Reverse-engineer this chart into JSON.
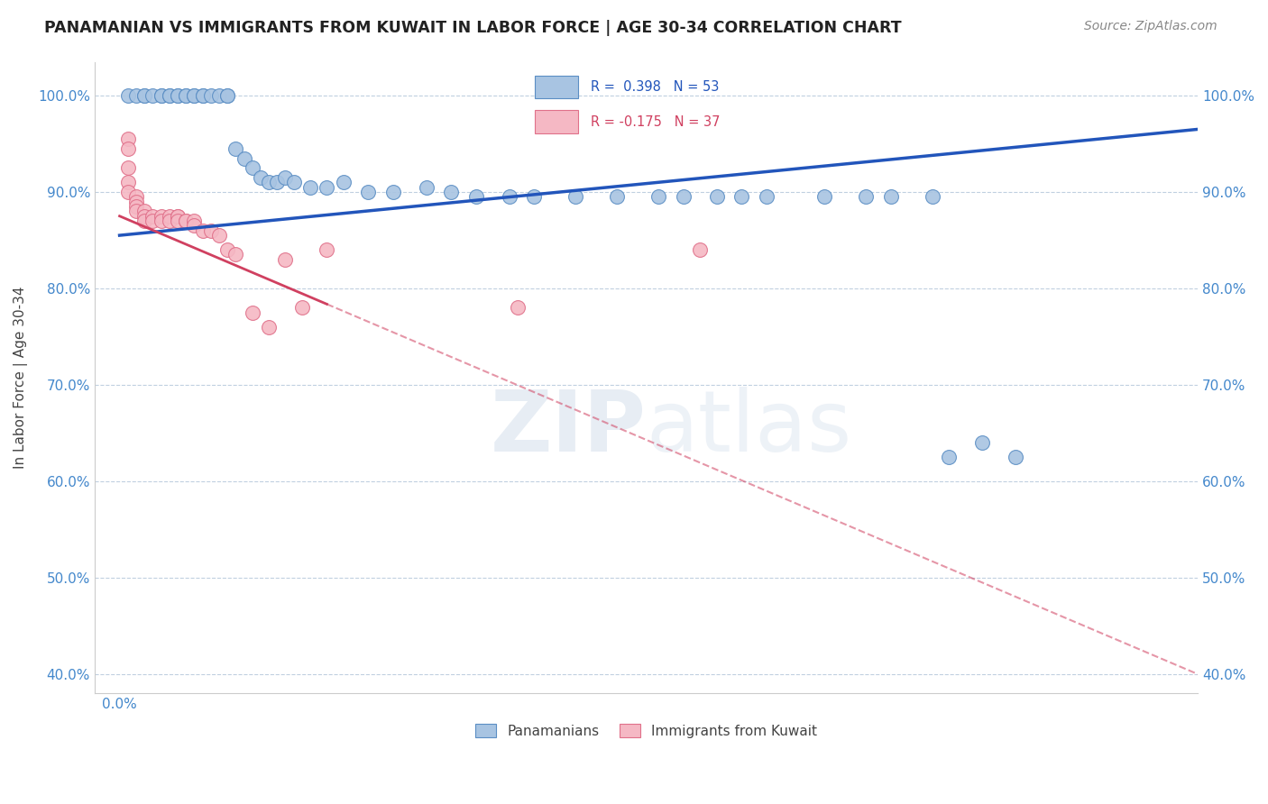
{
  "title": "PANAMANIAN VS IMMIGRANTS FROM KUWAIT IN LABOR FORCE | AGE 30-34 CORRELATION CHART",
  "source": "Source: ZipAtlas.com",
  "ylabel": "In Labor Force | Age 30-34",
  "xlim": [
    -0.003,
    0.13
  ],
  "ylim": [
    0.38,
    1.035
  ],
  "x_ticks": [
    0.0,
    0.025,
    0.05,
    0.075,
    0.1,
    0.125
  ],
  "y_ticks": [
    0.4,
    0.5,
    0.6,
    0.7,
    0.8,
    0.9,
    1.0
  ],
  "y_tick_labels": [
    "40.0%",
    "50.0%",
    "60.0%",
    "70.0%",
    "80.0%",
    "90.0%",
    "100.0%"
  ],
  "r_blue": 0.398,
  "n_blue": 53,
  "r_pink": -0.175,
  "n_pink": 37,
  "blue_fill": "#a8c4e2",
  "blue_edge": "#5b8ec4",
  "pink_fill": "#f5b8c4",
  "pink_edge": "#e0708a",
  "blue_line_color": "#2255bb",
  "pink_line_color": "#d04060",
  "grid_color": "#c0d0e0",
  "blue_points_x": [
    0.001,
    0.002,
    0.003,
    0.003,
    0.004,
    0.005,
    0.005,
    0.006,
    0.006,
    0.007,
    0.007,
    0.008,
    0.008,
    0.009,
    0.009,
    0.01,
    0.01,
    0.011,
    0.012,
    0.013,
    0.013,
    0.014,
    0.015,
    0.016,
    0.017,
    0.018,
    0.019,
    0.02,
    0.021,
    0.023,
    0.025,
    0.027,
    0.03,
    0.033,
    0.037,
    0.04,
    0.043,
    0.047,
    0.05,
    0.055,
    0.06,
    0.065,
    0.068,
    0.072,
    0.075,
    0.078,
    0.085,
    0.09,
    0.093,
    0.098,
    0.1,
    0.104,
    0.108
  ],
  "blue_points_y": [
    1.0,
    1.0,
    1.0,
    1.0,
    1.0,
    1.0,
    1.0,
    1.0,
    1.0,
    1.0,
    1.0,
    1.0,
    1.0,
    1.0,
    1.0,
    1.0,
    1.0,
    1.0,
    1.0,
    1.0,
    1.0,
    0.945,
    0.935,
    0.925,
    0.915,
    0.91,
    0.91,
    0.915,
    0.91,
    0.905,
    0.905,
    0.91,
    0.9,
    0.9,
    0.905,
    0.9,
    0.895,
    0.895,
    0.895,
    0.895,
    0.895,
    0.895,
    0.895,
    0.895,
    0.895,
    0.895,
    0.895,
    0.895,
    0.895,
    0.895,
    0.625,
    0.64,
    0.625
  ],
  "pink_points_x": [
    0.001,
    0.001,
    0.001,
    0.001,
    0.001,
    0.002,
    0.002,
    0.002,
    0.002,
    0.003,
    0.003,
    0.003,
    0.004,
    0.004,
    0.005,
    0.005,
    0.006,
    0.006,
    0.007,
    0.007,
    0.007,
    0.008,
    0.008,
    0.009,
    0.009,
    0.01,
    0.011,
    0.012,
    0.013,
    0.014,
    0.016,
    0.018,
    0.02,
    0.022,
    0.025,
    0.048,
    0.07
  ],
  "pink_points_y": [
    0.955,
    0.945,
    0.925,
    0.91,
    0.9,
    0.895,
    0.89,
    0.885,
    0.88,
    0.88,
    0.875,
    0.87,
    0.875,
    0.87,
    0.875,
    0.87,
    0.875,
    0.87,
    0.875,
    0.875,
    0.87,
    0.87,
    0.87,
    0.87,
    0.865,
    0.86,
    0.86,
    0.855,
    0.84,
    0.835,
    0.775,
    0.76,
    0.83,
    0.78,
    0.84,
    0.78,
    0.84
  ]
}
